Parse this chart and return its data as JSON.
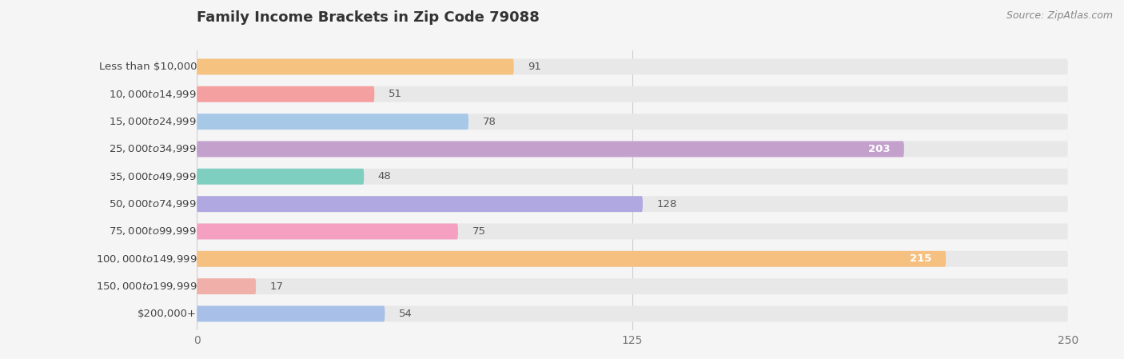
{
  "title": "Family Income Brackets in Zip Code 79088",
  "source": "Source: ZipAtlas.com",
  "categories": [
    "Less than $10,000",
    "$10,000 to $14,999",
    "$15,000 to $24,999",
    "$25,000 to $34,999",
    "$35,000 to $49,999",
    "$50,000 to $74,999",
    "$75,000 to $99,999",
    "$100,000 to $149,999",
    "$150,000 to $199,999",
    "$200,000+"
  ],
  "values": [
    91,
    51,
    78,
    203,
    48,
    128,
    75,
    215,
    17,
    54
  ],
  "colors": [
    "#F5C27F",
    "#F5A0A0",
    "#A8C8E8",
    "#C4A0CC",
    "#7ECFC0",
    "#B0A8E0",
    "#F5A0C0",
    "#F5C080",
    "#F0AFA8",
    "#A8C0E8"
  ],
  "xlim": [
    0,
    250
  ],
  "xticks": [
    0,
    125,
    250
  ],
  "bar_max": 250,
  "background_color": "#f5f5f5",
  "bar_bg_color": "#e8e8e8",
  "title_fontsize": 13,
  "label_fontsize": 9.5,
  "value_fontsize": 9.5,
  "tick_fontsize": 10
}
